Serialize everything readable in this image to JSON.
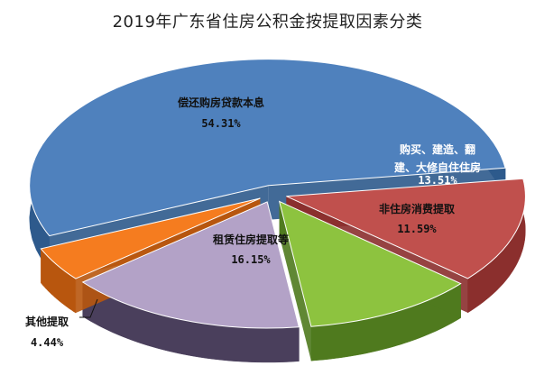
{
  "chart_data": {
    "type": "pie",
    "title": "2019年广东省住房公积金按提取因素分类",
    "unit": "%",
    "slices": [
      {
        "label": "偿还购房贷款本息",
        "value": 54.31,
        "pct_text": "54.31%",
        "color": "#4F81BD",
        "side_color": "#2E5A8C",
        "text_color": "#111111"
      },
      {
        "label_lines": [
          "购买、建造、翻",
          "建、大修自住住房"
        ],
        "value": 13.51,
        "pct_text": "13.51%",
        "color": "#C0504D",
        "side_color": "#8B2F2D",
        "text_color": "#ffffff"
      },
      {
        "label": "非住房消费提取",
        "value": 11.59,
        "pct_text": "11.59%",
        "color": "#8DC33F",
        "side_color": "#4F7A1E",
        "text_color": "#111111"
      },
      {
        "label": "租赁住房提取等",
        "value": 16.15,
        "pct_text": "16.15%",
        "color": "#B3A2C7",
        "side_color": "#4A3F5C",
        "text_color": "#111111"
      },
      {
        "label": "其他提取",
        "value": 4.44,
        "pct_text": "4.44%",
        "color": "#F57C1F",
        "side_color": "#B8560E",
        "text_color": "#111111"
      }
    ]
  }
}
